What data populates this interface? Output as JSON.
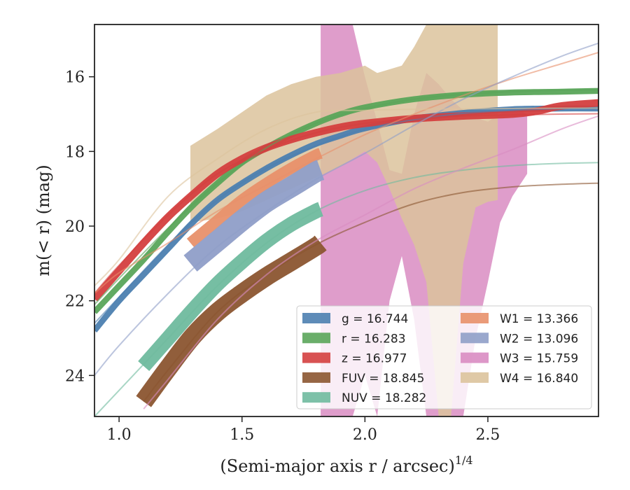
{
  "chart_data": {
    "type": "line",
    "xlabel": "(Semi-major axis r / arcsec)",
    "xlabel_exponent": "1/4",
    "ylabel": "m(< r) (mag)",
    "xlim": [
      0.9,
      2.95
    ],
    "ylim": [
      25.1,
      14.6
    ],
    "y_inverted": true,
    "grid": false,
    "legend_position": "lower-right",
    "x_ticks": [
      1.0,
      1.5,
      2.0,
      2.5
    ],
    "x_tick_labels": [
      "1.0",
      "1.5",
      "2.0",
      "2.5"
    ],
    "y_ticks": [
      16,
      18,
      20,
      22,
      24
    ],
    "y_tick_labels": [
      "16",
      "18",
      "20",
      "22",
      "24"
    ],
    "legend_columns": 2,
    "series": [
      {
        "name": "g",
        "label": "g = 16.744",
        "color": "#4c7fb0",
        "band_x": [
          0.9,
          1.0,
          1.1,
          1.2,
          1.3,
          1.4,
          1.5,
          1.6,
          1.7,
          1.8,
          1.9,
          2.0,
          2.2,
          2.4,
          2.6,
          2.8,
          2.95
        ],
        "band_y": [
          22.8,
          22.0,
          21.3,
          20.6,
          19.9,
          19.3,
          18.85,
          18.45,
          18.1,
          17.8,
          17.58,
          17.38,
          17.12,
          16.97,
          16.87,
          16.85,
          16.85
        ],
        "band_width": 0.08,
        "model_x": [
          0.9,
          1.0,
          1.2,
          1.4,
          1.6,
          1.8,
          2.0,
          2.2,
          2.4,
          2.6,
          2.8,
          2.95
        ],
        "model_y": [
          22.6,
          21.9,
          20.5,
          19.3,
          18.45,
          17.85,
          17.4,
          17.15,
          16.98,
          16.9,
          16.85,
          16.84
        ]
      },
      {
        "name": "r",
        "label": "r = 16.283",
        "color": "#5aa55a",
        "band_x": [
          0.9,
          1.0,
          1.1,
          1.2,
          1.3,
          1.4,
          1.5,
          1.6,
          1.7,
          1.8,
          1.9,
          2.0,
          2.2,
          2.4,
          2.6,
          2.8,
          2.95
        ],
        "band_y": [
          22.3,
          21.6,
          20.9,
          20.15,
          19.45,
          18.85,
          18.3,
          17.9,
          17.55,
          17.25,
          17.0,
          16.82,
          16.6,
          16.48,
          16.42,
          16.4,
          16.38
        ],
        "band_width": 0.08,
        "model_x": [
          0.9,
          1.0,
          1.2,
          1.4,
          1.6,
          1.8,
          2.0,
          2.2,
          2.4,
          2.6,
          2.8,
          2.95
        ],
        "model_y": [
          22.1,
          21.4,
          20.05,
          18.85,
          17.9,
          17.25,
          16.85,
          16.6,
          16.47,
          16.4,
          16.36,
          16.35
        ]
      },
      {
        "name": "z",
        "label": "z = 16.977",
        "color": "#d43f3f",
        "band_x": [
          0.9,
          1.0,
          1.1,
          1.2,
          1.3,
          1.4,
          1.5,
          1.6,
          1.7,
          1.8,
          1.9,
          2.0,
          2.2,
          2.4,
          2.6,
          2.7,
          2.8,
          2.95
        ],
        "band_y": [
          21.95,
          21.2,
          20.45,
          19.75,
          19.15,
          18.6,
          18.2,
          17.9,
          17.68,
          17.5,
          17.35,
          17.25,
          17.12,
          17.05,
          17.0,
          16.92,
          16.78,
          16.7
        ],
        "band_width": 0.1,
        "model_x": [
          0.9,
          1.0,
          1.2,
          1.4,
          1.6,
          1.8,
          2.0,
          2.2,
          2.4,
          2.6,
          2.8,
          2.95
        ],
        "model_y": [
          21.8,
          21.05,
          19.7,
          18.6,
          17.95,
          17.5,
          17.25,
          17.12,
          17.05,
          17.02,
          17.0,
          16.99
        ]
      },
      {
        "name": "FUV",
        "label": "FUV = 18.845",
        "color": "#8b5530",
        "band_x": [
          1.1,
          1.2,
          1.3,
          1.4,
          1.5,
          1.6,
          1.7,
          1.8,
          1.82
        ],
        "band_y": [
          24.7,
          23.8,
          22.95,
          22.3,
          21.8,
          21.35,
          20.95,
          20.55,
          20.45
        ],
        "band_width": 0.25,
        "model_x": [
          1.1,
          1.2,
          1.4,
          1.6,
          1.8,
          2.0,
          2.2,
          2.4,
          2.6,
          2.8,
          2.95
        ],
        "model_y": [
          24.7,
          23.85,
          22.3,
          21.3,
          20.5,
          19.9,
          19.4,
          19.1,
          18.95,
          18.88,
          18.85
        ]
      },
      {
        "name": "NUV",
        "label": "NUV = 18.282",
        "color": "#6fba9e",
        "band_x": [
          1.1,
          1.2,
          1.3,
          1.4,
          1.5,
          1.6,
          1.7,
          1.8,
          1.82
        ],
        "band_y": [
          23.75,
          23.0,
          22.25,
          21.55,
          20.95,
          20.4,
          19.95,
          19.6,
          19.55
        ],
        "band_width": 0.2,
        "model_x": [
          0.9,
          1.0,
          1.2,
          1.4,
          1.6,
          1.8,
          2.0,
          2.2,
          2.4,
          2.6,
          2.8,
          2.95
        ],
        "model_y": [
          25.1,
          24.4,
          23.0,
          21.6,
          20.45,
          19.6,
          19.05,
          18.7,
          18.5,
          18.38,
          18.32,
          18.3
        ]
      },
      {
        "name": "W1",
        "label": "W1 = 13.366",
        "color": "#e8906a",
        "band_x": [
          1.29,
          1.4,
          1.5,
          1.6,
          1.7,
          1.8,
          1.82
        ],
        "band_y": [
          20.45,
          19.85,
          19.3,
          18.85,
          18.45,
          18.1,
          18.05
        ],
        "band_width": 0.15,
        "model_x": [
          0.9,
          1.0,
          1.2,
          1.4,
          1.6,
          1.8,
          2.0,
          2.2,
          2.4,
          2.6,
          2.8,
          2.95
        ],
        "model_y": [
          21.8,
          21.25,
          20.45,
          19.6,
          18.9,
          18.2,
          17.55,
          17.0,
          16.5,
          16.05,
          15.65,
          15.35
        ]
      },
      {
        "name": "W2",
        "label": "W2 = 13.096",
        "color": "#8f9ec8",
        "band_x": [
          1.29,
          1.4,
          1.5,
          1.6,
          1.7,
          1.8,
          1.82
        ],
        "band_y": [
          21.0,
          20.4,
          19.85,
          19.35,
          18.95,
          18.55,
          18.5
        ],
        "band_width": 0.28,
        "model_x": [
          0.9,
          1.0,
          1.2,
          1.4,
          1.6,
          1.8,
          2.0,
          2.2,
          2.4,
          2.6,
          2.8,
          2.95
        ],
        "model_y": [
          24.0,
          23.2,
          21.8,
          20.55,
          19.6,
          18.75,
          18.05,
          17.3,
          16.6,
          16.0,
          15.45,
          15.1
        ]
      },
      {
        "name": "W3",
        "label": "W3 = 15.759",
        "color": "#d98cc2",
        "band_x": [
          1.82,
          1.82,
          1.85,
          1.9,
          1.95,
          2.0,
          2.05,
          2.1,
          2.15,
          2.2,
          2.25,
          2.3,
          2.35,
          2.4,
          2.45,
          2.5,
          2.55,
          2.6,
          2.66,
          2.66,
          2.6,
          2.55,
          2.5,
          2.45,
          2.4,
          2.35,
          2.3,
          2.25,
          2.2,
          2.15,
          2.1,
          2.05,
          2.0,
          1.95,
          1.9,
          1.85
        ],
        "band_y": [
          14.6,
          25.1,
          25.1,
          25.1,
          25.1,
          24.0,
          25.1,
          22.0,
          20.8,
          22.5,
          25.1,
          25.1,
          25.1,
          25.1,
          23.0,
          21.5,
          19.9,
          19.2,
          18.6,
          17.0,
          16.8,
          17.0,
          17.2,
          17.1,
          16.9,
          16.6,
          16.2,
          15.9,
          17.0,
          18.6,
          18.5,
          17.2,
          16.0,
          14.6,
          14.6,
          14.6
        ],
        "model_x": [
          1.1,
          1.2,
          1.4,
          1.6,
          1.8,
          2.0,
          2.2,
          2.4,
          2.6,
          2.8,
          2.95
        ],
        "model_y": [
          24.9,
          24.1,
          22.5,
          21.3,
          20.4,
          19.7,
          19.0,
          18.45,
          17.95,
          17.4,
          17.05
        ]
      },
      {
        "name": "W4",
        "label": "W4 = 16.840",
        "color": "#dcc39c",
        "band_x": [
          1.29,
          1.29,
          1.4,
          1.5,
          1.6,
          1.7,
          1.8,
          1.9,
          2.0,
          2.05,
          2.1,
          2.15,
          2.2,
          2.25,
          2.3,
          2.35,
          2.4,
          2.45,
          2.5,
          2.54,
          2.54,
          2.5,
          2.45,
          2.4,
          2.35,
          2.3,
          2.25,
          2.2,
          2.15,
          2.1,
          2.05,
          2.0,
          1.9,
          1.8,
          1.7,
          1.6,
          1.5,
          1.4
        ],
        "band_y": [
          17.85,
          19.9,
          19.8,
          19.6,
          19.3,
          19.0,
          18.7,
          18.4,
          18.0,
          18.3,
          19.0,
          19.8,
          20.5,
          21.5,
          25.1,
          25.1,
          21.0,
          19.5,
          19.35,
          19.3,
          14.6,
          14.6,
          14.6,
          14.6,
          14.6,
          14.6,
          14.6,
          15.2,
          15.7,
          15.8,
          15.9,
          15.7,
          15.9,
          16.0,
          16.2,
          16.5,
          16.95,
          17.4
        ],
        "model_x": [
          0.9,
          1.0,
          1.2,
          1.4,
          1.6,
          1.8,
          2.0,
          2.2,
          2.4,
          2.6,
          2.8,
          2.95
        ],
        "model_y": [
          21.6,
          20.9,
          19.2,
          18.2,
          17.4,
          16.95,
          16.9,
          16.87,
          16.86,
          16.85,
          16.84,
          16.84
        ]
      }
    ]
  }
}
